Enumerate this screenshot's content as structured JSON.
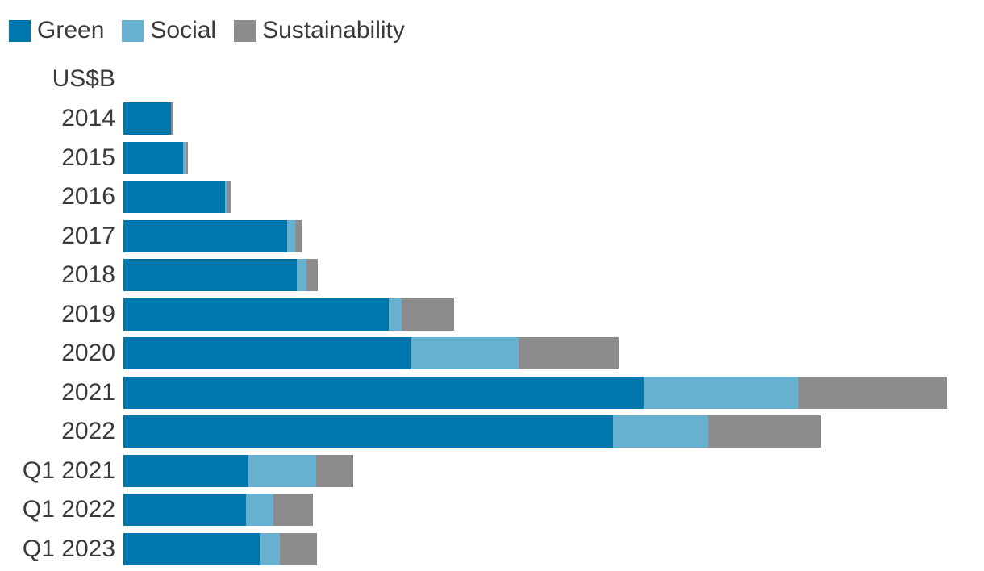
{
  "legend": {
    "position": "top-left",
    "items": [
      {
        "label": "Green",
        "color": "#0077ac"
      },
      {
        "label": "Social",
        "color": "#68b0d0"
      },
      {
        "label": "Sustainability",
        "color": "#8c8c8c"
      }
    ]
  },
  "axis": {
    "unit_label": "US$B"
  },
  "chart_data": {
    "type": "bar",
    "orientation": "horizontal",
    "stacked": true,
    "title": "",
    "xlabel": "US$B",
    "ylabel": "",
    "grid": false,
    "legend_position": "top-left",
    "xlim": [
      0,
      1030
    ],
    "categories": [
      "2014",
      "2015",
      "2016",
      "2017",
      "2018",
      "2019",
      "2020",
      "2021",
      "2022",
      "Q1 2021",
      "Q1 2022",
      "Q1 2023"
    ],
    "series": [
      {
        "name": "Green",
        "color": "#0077ac",
        "values": [
          59,
          74,
          126,
          203,
          215,
          329,
          356,
          645,
          607,
          155,
          152,
          169
        ]
      },
      {
        "name": "Social",
        "color": "#68b0d0",
        "values": [
          0,
          3,
          3,
          10,
          12,
          16,
          134,
          192,
          118,
          84,
          34,
          25
        ]
      },
      {
        "name": "Sustainability",
        "color": "#8c8c8c",
        "values": [
          3,
          3,
          5,
          8,
          14,
          65,
          124,
          184,
          140,
          46,
          49,
          46
        ]
      }
    ]
  },
  "colors": {
    "text": "#3a3a3a",
    "background": "#ffffff"
  }
}
